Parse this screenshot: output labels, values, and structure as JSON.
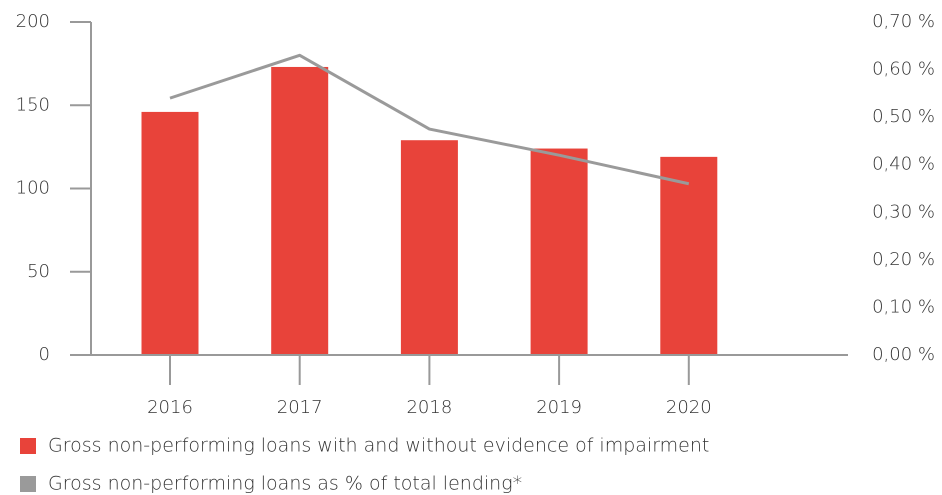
{
  "chart_data": {
    "type": "bar_line",
    "categories": [
      "2016",
      "2017",
      "2018",
      "2019",
      "2020"
    ],
    "series": [
      {
        "name": "Gross non-performing loans with and without evidence of impairment",
        "type": "bar",
        "color": "#e8433a",
        "values": [
          146,
          173,
          129,
          124,
          119
        ]
      },
      {
        "name": "Gross non-performing loans as % of total lending*",
        "type": "line",
        "color": "#9a9a9a",
        "axis": "y2",
        "values": [
          0.54,
          0.63,
          0.475,
          0.42,
          0.36
        ]
      }
    ],
    "ylim": [
      0,
      200
    ],
    "yticks": [
      0,
      50,
      100,
      150,
      200
    ],
    "y2lim": [
      0,
      0.7
    ],
    "y2ticks": [
      {
        "value": 0,
        "label": "0,00 %"
      },
      {
        "value": 0.1,
        "label": "0,10 %"
      },
      {
        "value": 0.2,
        "label": "0,20 %"
      },
      {
        "value": 0.3,
        "label": "0,30 %"
      },
      {
        "value": 0.4,
        "label": "0,40 %"
      },
      {
        "value": 0.5,
        "label": "0,50 %"
      },
      {
        "value": 0.6,
        "label": "0,60 %"
      },
      {
        "value": 0.7,
        "label": "0,70 %"
      }
    ],
    "legend": "bottom-left"
  }
}
